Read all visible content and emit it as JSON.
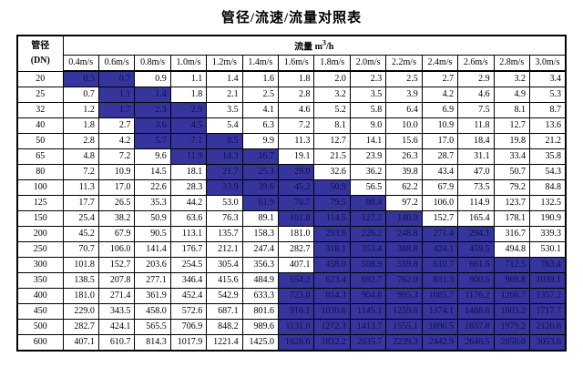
{
  "title": "管径/流速/流量对照表",
  "table": {
    "corner_header_line1": "管径",
    "corner_header_line2": "(DN)",
    "flow_header_label": "流量",
    "flow_unit_base": "m",
    "flow_unit_exponent": "3",
    "flow_unit_denominator": "/h",
    "highlight_color": "#35359d",
    "velocity_headers": [
      "0.4m/s",
      "0.6m/s",
      "0.8m/s",
      "1.0m/s",
      "1.2m/s",
      "1.4m/s",
      "1.6m/s",
      "1.8m/s",
      "2.0m/s",
      "2.2m/s",
      "2.4m/s",
      "2.6m/s",
      "2.8m/s",
      "3.0m/s"
    ],
    "rows": [
      {
        "dn": "20",
        "values": [
          "0.5",
          "0.7",
          "0.9",
          "1.1",
          "1.4",
          "1.6",
          "1.8",
          "2.0",
          "2.3",
          "2.5",
          "2.7",
          "2.9",
          "3.2",
          "3.4"
        ],
        "highlight": [
          0,
          1
        ]
      },
      {
        "dn": "25",
        "values": [
          "0.7",
          "1.1",
          "1.4",
          "1.8",
          "2.1",
          "2.5",
          "2.8",
          "3.2",
          "3.5",
          "3.9",
          "4.2",
          "4.6",
          "4.9",
          "5.3"
        ],
        "highlight": [
          1,
          2
        ]
      },
      {
        "dn": "32",
        "values": [
          "1.2",
          "1.7",
          "2.3",
          "2.9",
          "3.5",
          "4.1",
          "4.6",
          "5.2",
          "5.8",
          "6.4",
          "6.9",
          "7.5",
          "8.1",
          "8.7"
        ],
        "highlight": [
          1,
          2,
          3
        ]
      },
      {
        "dn": "40",
        "values": [
          "1.8",
          "2.7",
          "3.6",
          "4.5",
          "5.4",
          "6.3",
          "7.2",
          "8.1",
          "9.0",
          "10.0",
          "10.9",
          "11.8",
          "12.7",
          "13.6"
        ],
        "highlight": [
          2,
          3
        ]
      },
      {
        "dn": "50",
        "values": [
          "2.8",
          "4.2",
          "5.7",
          "7.1",
          "8.5",
          "9.9",
          "11.3",
          "12.7",
          "14.1",
          "15.6",
          "17.0",
          "18.4",
          "19.8",
          "21.2"
        ],
        "highlight": [
          2,
          3,
          4
        ]
      },
      {
        "dn": "65",
        "values": [
          "4.8",
          "7.2",
          "9.6",
          "11.9",
          "14.3",
          "16.7",
          "19.1",
          "21.5",
          "23.9",
          "26.3",
          "28.7",
          "31.1",
          "33.4",
          "35.8"
        ],
        "highlight": [
          3,
          4,
          5
        ]
      },
      {
        "dn": "80",
        "values": [
          "7.2",
          "10.9",
          "14.5",
          "18.1",
          "21.7",
          "25.3",
          "29.0",
          "32.6",
          "36.2",
          "39.8",
          "43.4",
          "47.0",
          "50.7",
          "54.3"
        ],
        "highlight": [
          4,
          5,
          6
        ]
      },
      {
        "dn": "100",
        "values": [
          "11.3",
          "17.0",
          "22.6",
          "28.3",
          "33.9",
          "39.6",
          "45.2",
          "50.9",
          "56.5",
          "62.2",
          "67.9",
          "73.5",
          "79.2",
          "84.8"
        ],
        "highlight": [
          4,
          5,
          6,
          7
        ]
      },
      {
        "dn": "125",
        "values": [
          "17.7",
          "26.5",
          "35.3",
          "44.2",
          "53.0",
          "61.9",
          "70.7",
          "79.5",
          "88.4",
          "97.2",
          "106.0",
          "114.9",
          "123.7",
          "132.5"
        ],
        "highlight": [
          5,
          6,
          7,
          8
        ]
      },
      {
        "dn": "150",
        "values": [
          "25.4",
          "38.2",
          "50.9",
          "63.6",
          "76.3",
          "89.1",
          "101.8",
          "114.5",
          "127.2",
          "140.0",
          "152.7",
          "165.4",
          "178.1",
          "190.9"
        ],
        "highlight": [
          6,
          7,
          8,
          9
        ]
      },
      {
        "dn": "200",
        "values": [
          "45.2",
          "67.9",
          "90.5",
          "113.1",
          "135.7",
          "158.3",
          "181.0",
          "203.6",
          "226.2",
          "248.8",
          "271.4",
          "294.1",
          "316.7",
          "339.3"
        ],
        "highlight": [
          7,
          8,
          9,
          10,
          11
        ]
      },
      {
        "dn": "250",
        "values": [
          "70.7",
          "106.0",
          "141.4",
          "176.7",
          "212.1",
          "247.4",
          "282.7",
          "318.1",
          "353.4",
          "388.8",
          "424.1",
          "459.5",
          "494.8",
          "530.1"
        ],
        "highlight": [
          7,
          8,
          9,
          10,
          11
        ]
      },
      {
        "dn": "300",
        "values": [
          "101.8",
          "152.7",
          "203.6",
          "254.5",
          "305.4",
          "356.3",
          "407.1",
          "458.0",
          "508.9",
          "559.8",
          "610.7",
          "661.6",
          "712.5",
          "763.4"
        ],
        "highlight": [
          7,
          8,
          9,
          10,
          11,
          12,
          13
        ]
      },
      {
        "dn": "350",
        "values": [
          "138.5",
          "207.8",
          "277.1",
          "346.4",
          "415.6",
          "484.9",
          "554.2",
          "623.4",
          "692.7",
          "762.0",
          "831.3",
          "900.5",
          "969.8",
          "1039.1"
        ],
        "highlight": [
          6,
          7,
          8,
          9,
          10,
          11,
          12,
          13
        ]
      },
      {
        "dn": "400",
        "values": [
          "181.0",
          "271.4",
          "361.9",
          "452.4",
          "542.9",
          "633.3",
          "723.8",
          "814.3",
          "904.8",
          "995.3",
          "1085.7",
          "1176.2",
          "1266.7",
          "1357.2"
        ],
        "highlight": [
          6,
          7,
          8,
          9,
          10,
          11,
          12,
          13
        ]
      },
      {
        "dn": "450",
        "values": [
          "229.0",
          "343.5",
          "458.0",
          "572.6",
          "687.1",
          "801.6",
          "916.1",
          "1030.6",
          "1145.1",
          "1259.6",
          "1374.1",
          "1488.6",
          "1603.2",
          "1717.7"
        ],
        "highlight": [
          6,
          7,
          8,
          9,
          10,
          11,
          12,
          13
        ]
      },
      {
        "dn": "500",
        "values": [
          "282.7",
          "424.1",
          "565.5",
          "706.9",
          "848.2",
          "989.6",
          "1131.0",
          "1272.3",
          "1413.7",
          "1555.1",
          "1696.5",
          "1837.8",
          "1979.2",
          "2120.6"
        ],
        "highlight": [
          6,
          7,
          8,
          9,
          10,
          11,
          12,
          13
        ]
      },
      {
        "dn": "600",
        "values": [
          "407.1",
          "610.7",
          "814.3",
          "1017.9",
          "1221.4",
          "1425.0",
          "1628.6",
          "1832.2",
          "2035.7",
          "2239.3",
          "2442.9",
          "2646.5",
          "2850.0",
          "3053.6"
        ],
        "highlight": [
          6,
          7,
          8,
          9,
          10,
          11,
          12,
          13
        ]
      }
    ]
  }
}
